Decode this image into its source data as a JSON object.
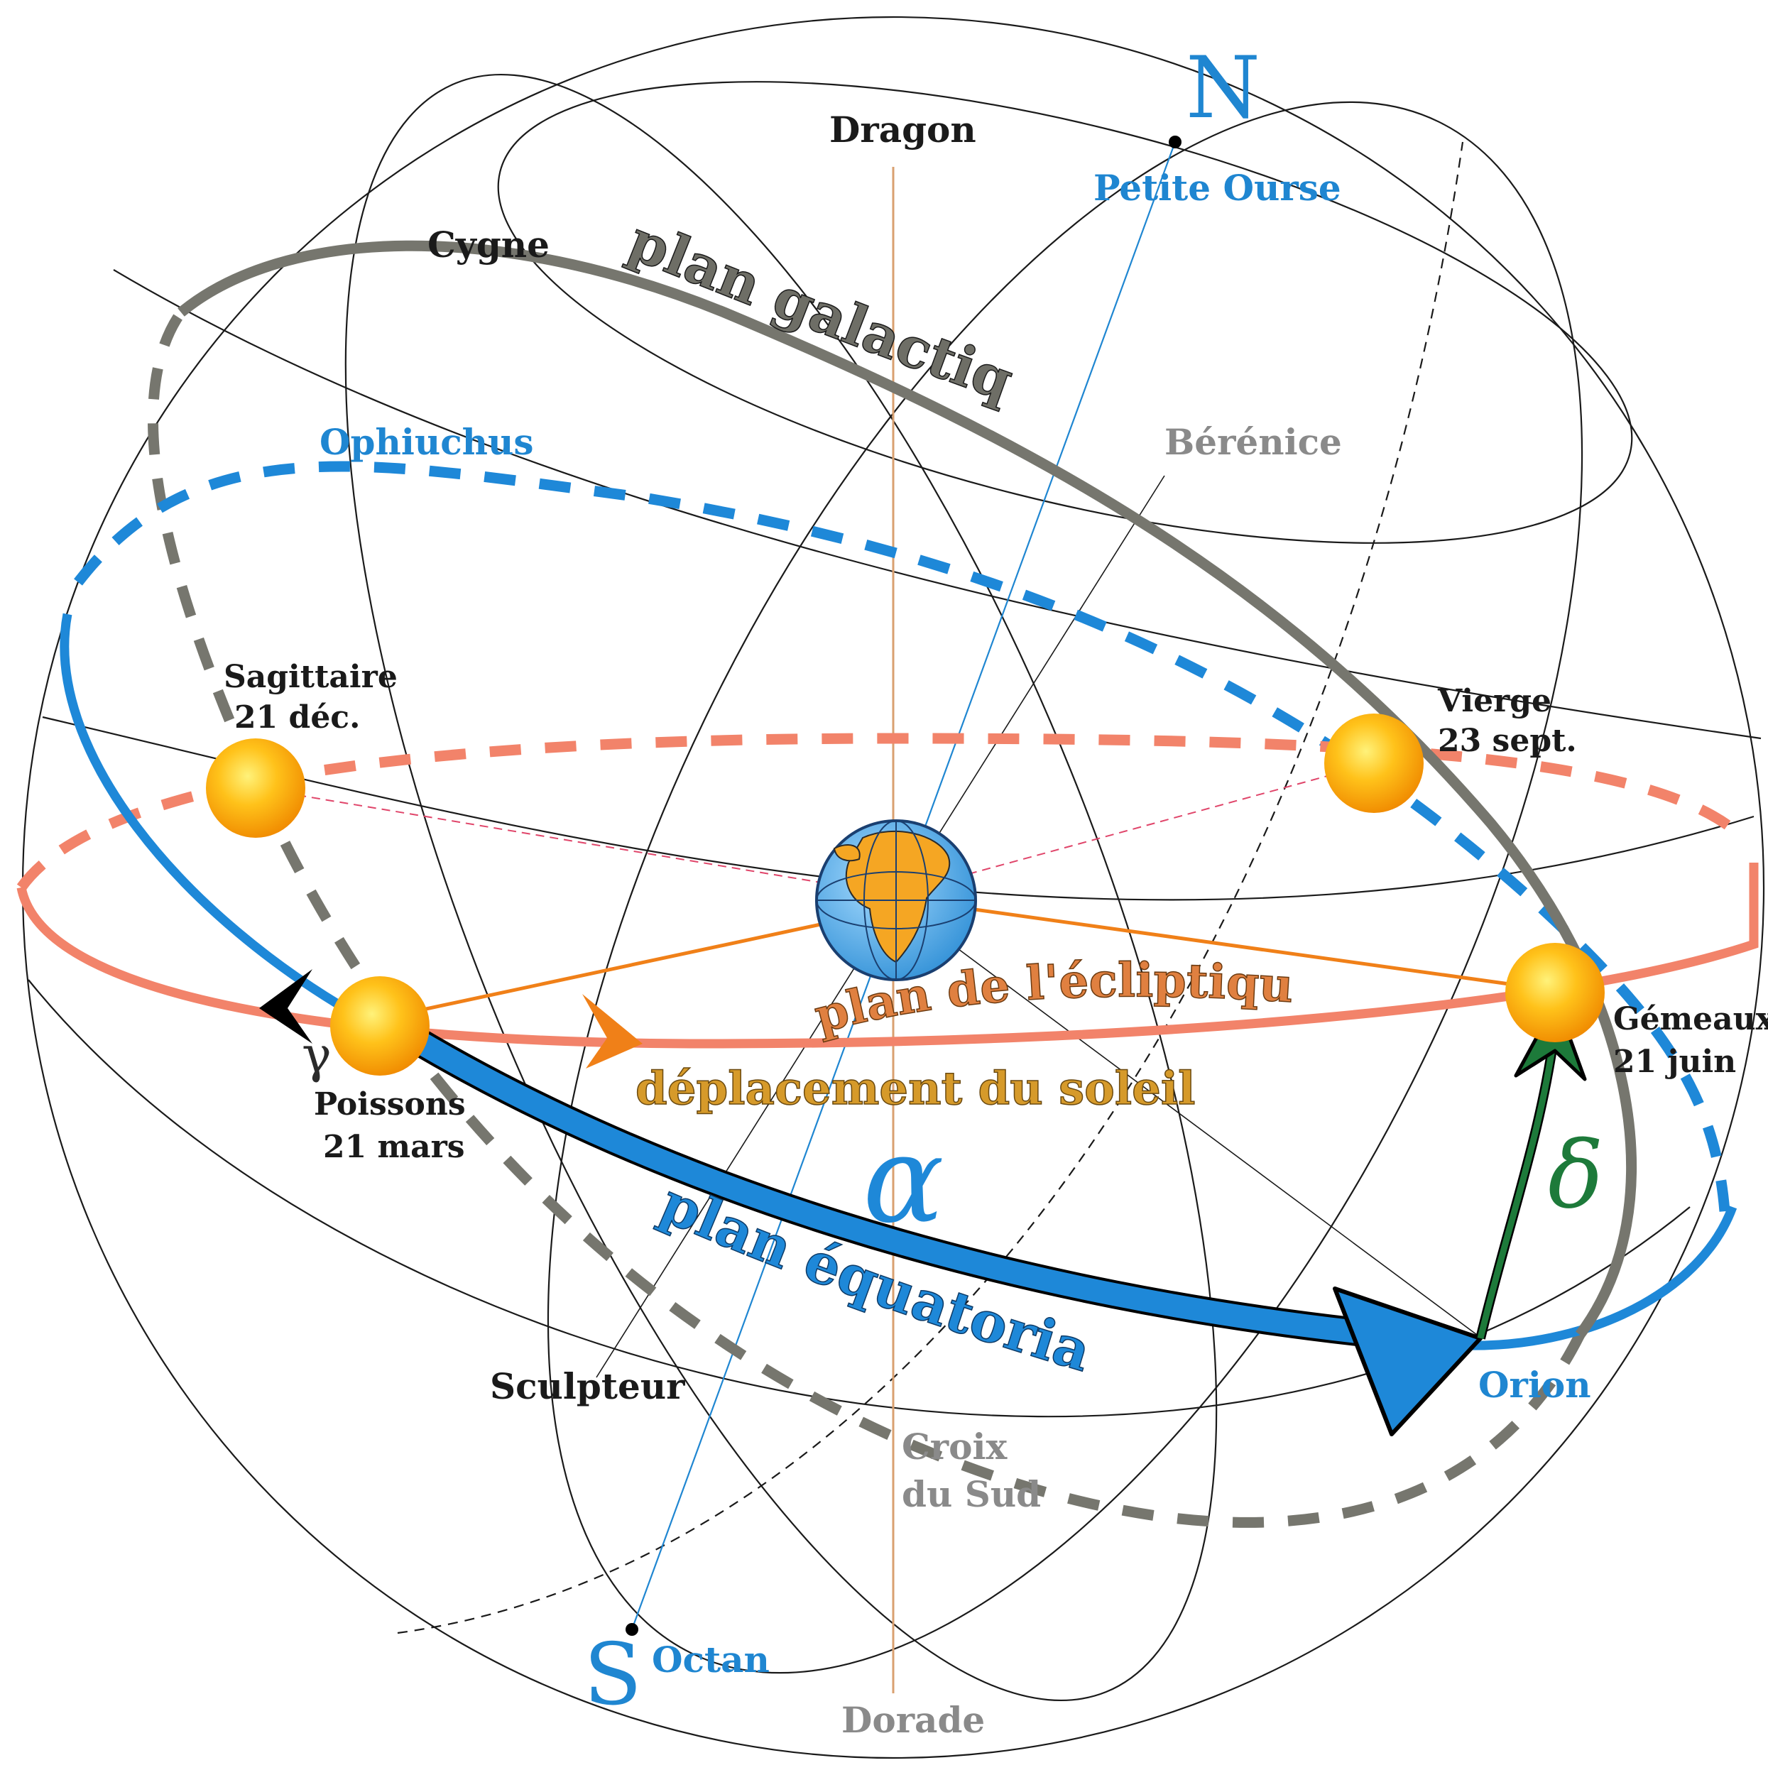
{
  "colors": {
    "galactic": "#76766e",
    "equatorial": "#1e88d8",
    "ecliptic": "#f2836a",
    "sun_vector": "#f08018",
    "declination": "#1d7a3a",
    "axis_ns": "#1f86d1",
    "axis_vertical": "#d9a070",
    "grid": "#1a1a1a"
  },
  "icons": {
    "sun": "sun-sphere-icon",
    "earth": "earth-globe-icon"
  },
  "poles": {
    "north": "N",
    "south": "S"
  },
  "constellations": {
    "dragon": "Dragon",
    "petite_ourse": "Petite Ourse",
    "cygne": "Cygne",
    "ophiuchus": "Ophiuchus",
    "berenice": "Bérénice",
    "sculpteur": "Sculpteur",
    "croix_du_sud_line1": "Croix",
    "croix_du_sud_line2": "du Sud",
    "octan": "Octan",
    "dorade": "Dorade",
    "orion": "Orion"
  },
  "planes": {
    "galactic": "plan galactique",
    "ecliptic": "plan de l'écliptique",
    "sun_motion": "déplacement du soleil",
    "equatorial": "plan équatorial"
  },
  "sun_positions": {
    "sagittaire": {
      "name": "Sagittaire",
      "date": "21 déc."
    },
    "vierge": {
      "name": "Vierge",
      "date": "23 sept."
    },
    "poissons": {
      "name": "Poissons",
      "date": "21 mars"
    },
    "gemeaux": {
      "name": "Gémeaux",
      "date": "21 juin"
    }
  },
  "symbols": {
    "gamma": "γ",
    "alpha": "α",
    "delta": "δ"
  }
}
